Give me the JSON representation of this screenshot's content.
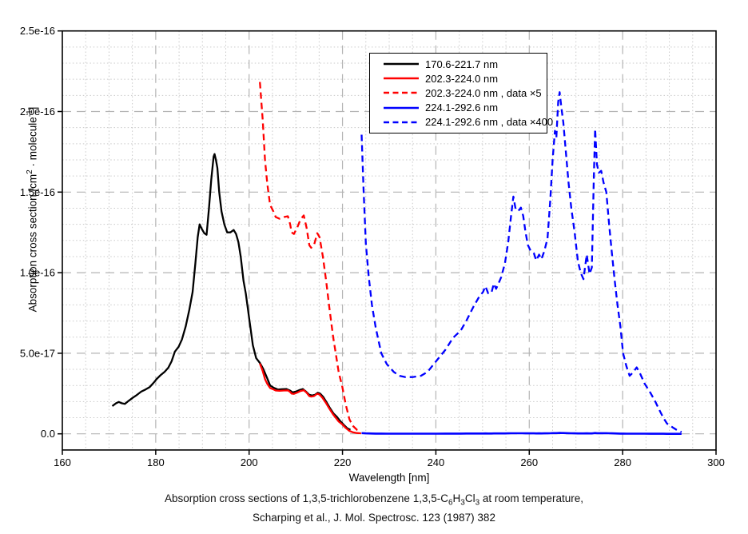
{
  "figure": {
    "x_axis": {
      "label": "Wavelength [nm]",
      "min": 160,
      "max": 300,
      "major_ticks": [
        160,
        180,
        200,
        220,
        240,
        260,
        280,
        300
      ],
      "minor_step_nm": 5
    },
    "y_axis": {
      "label_segments": [
        {
          "t": "Absorption cross section [cm"
        },
        {
          "t": "2",
          "sup": true
        },
        {
          "t": " · molecule"
        },
        {
          "t": "-1",
          "sup": true
        },
        {
          "t": "]"
        }
      ],
      "tick_labels": [
        "0.0",
        "5.0e-17",
        "1.0e-16",
        "1.5e-16",
        "2.0e-16",
        "2.5e-16"
      ],
      "tick_values": [
        0,
        0.5,
        1.0,
        1.5,
        2.0,
        2.5
      ],
      "axis_bottom_value": -0.1,
      "minor_step": 0.1,
      "value_unit": "1e-16 cm^2 molecule^-1"
    },
    "caption_line1_segments": [
      {
        "t": "Absorption cross sections of 1,3,5-trichlorobenzene 1,3,5-C"
      },
      {
        "t": "6",
        "sub": true
      },
      {
        "t": "H"
      },
      {
        "t": "3",
        "sub": true
      },
      {
        "t": "Cl"
      },
      {
        "t": "3",
        "sub": true
      },
      {
        "t": " at room temperature,"
      }
    ],
    "caption_line2": "Scharping et al., J. Mol. Spectrosc. 123 (1987) 382"
  },
  "chart_data": {
    "type": "line",
    "title": "Absorption cross sections of 1,3,5-trichlorobenzene 1,3,5-C6H3Cl3 at room temperature, Scharping et al., J. Mol. Spectrosc. 123 (1987) 382",
    "xlabel": "Wavelength [nm]",
    "ylabel": "Absorption cross section [cm2 · molecule-1]",
    "xlim": [
      160,
      300
    ],
    "ylim_1e16": [
      -0.1,
      2.5
    ],
    "grid": "major dashed + minor dotted",
    "legend_position": "upper center inside frame",
    "y_values_unit": "1e-16 cm^2/molecule",
    "series": [
      {
        "name": "170.6-221.7 nm",
        "color": "#000000",
        "line_style": "solid",
        "scale": 1,
        "points": [
          [
            170.7,
            0.172
          ],
          [
            171.5,
            0.19
          ],
          [
            172.1,
            0.198
          ],
          [
            172.7,
            0.19
          ],
          [
            173.4,
            0.186
          ],
          [
            174.2,
            0.205
          ],
          [
            175.0,
            0.222
          ],
          [
            176.0,
            0.242
          ],
          [
            176.9,
            0.262
          ],
          [
            177.8,
            0.275
          ],
          [
            178.7,
            0.29
          ],
          [
            179.5,
            0.315
          ],
          [
            180.2,
            0.34
          ],
          [
            181.0,
            0.363
          ],
          [
            181.9,
            0.385
          ],
          [
            182.7,
            0.41
          ],
          [
            183.4,
            0.45
          ],
          [
            184.1,
            0.51
          ],
          [
            184.9,
            0.54
          ],
          [
            185.6,
            0.585
          ],
          [
            186.4,
            0.665
          ],
          [
            187.2,
            0.77
          ],
          [
            187.9,
            0.88
          ],
          [
            188.5,
            1.06
          ],
          [
            189.0,
            1.22
          ],
          [
            189.4,
            1.3
          ],
          [
            189.9,
            1.27
          ],
          [
            190.4,
            1.245
          ],
          [
            190.9,
            1.235
          ],
          [
            191.4,
            1.4
          ],
          [
            191.9,
            1.58
          ],
          [
            192.4,
            1.72
          ],
          [
            192.6,
            1.736
          ],
          [
            192.9,
            1.7
          ],
          [
            193.2,
            1.65
          ],
          [
            193.6,
            1.5
          ],
          [
            194.1,
            1.38
          ],
          [
            194.7,
            1.3
          ],
          [
            195.3,
            1.25
          ],
          [
            196.0,
            1.25
          ],
          [
            196.7,
            1.265
          ],
          [
            197.2,
            1.24
          ],
          [
            197.7,
            1.19
          ],
          [
            198.2,
            1.1
          ],
          [
            198.8,
            0.95
          ],
          [
            199.3,
            0.87
          ],
          [
            200.0,
            0.72
          ],
          [
            200.8,
            0.55
          ],
          [
            201.5,
            0.47
          ],
          [
            202.3,
            0.44
          ],
          [
            203.0,
            0.405
          ],
          [
            203.8,
            0.35
          ],
          [
            204.5,
            0.3
          ],
          [
            205.3,
            0.285
          ],
          [
            206.2,
            0.275
          ],
          [
            207.0,
            0.277
          ],
          [
            208.0,
            0.278
          ],
          [
            208.8,
            0.268
          ],
          [
            209.3,
            0.257
          ],
          [
            210.0,
            0.262
          ],
          [
            210.8,
            0.272
          ],
          [
            211.5,
            0.278
          ],
          [
            212.2,
            0.262
          ],
          [
            212.9,
            0.242
          ],
          [
            213.5,
            0.238
          ],
          [
            214.1,
            0.242
          ],
          [
            214.7,
            0.255
          ],
          [
            215.2,
            0.25
          ],
          [
            215.9,
            0.228
          ],
          [
            216.6,
            0.195
          ],
          [
            217.3,
            0.16
          ],
          [
            218.1,
            0.125
          ],
          [
            218.8,
            0.105
          ],
          [
            219.5,
            0.08
          ],
          [
            220.3,
            0.055
          ],
          [
            221.0,
            0.035
          ],
          [
            221.7,
            0.025
          ]
        ]
      },
      {
        "name": "202.3-224.0 nm",
        "color": "#ff0000",
        "line_style": "solid",
        "scale": 1,
        "points": [
          [
            202.3,
            0.4366
          ],
          [
            202.9,
            0.39
          ],
          [
            203.4,
            0.34
          ],
          [
            203.9,
            0.31
          ],
          [
            204.5,
            0.284
          ],
          [
            205.2,
            0.276
          ],
          [
            205.7,
            0.269
          ],
          [
            206.5,
            0.267
          ],
          [
            207.5,
            0.269
          ],
          [
            208.3,
            0.27
          ],
          [
            208.8,
            0.26
          ],
          [
            209.1,
            0.25
          ],
          [
            209.6,
            0.248
          ],
          [
            210.3,
            0.256
          ],
          [
            211.0,
            0.266
          ],
          [
            211.7,
            0.271
          ],
          [
            212.3,
            0.256
          ],
          [
            212.9,
            0.234
          ],
          [
            213.3,
            0.231
          ],
          [
            213.9,
            0.234
          ],
          [
            214.6,
            0.249
          ],
          [
            215.1,
            0.244
          ],
          [
            215.8,
            0.22
          ],
          [
            216.5,
            0.19
          ],
          [
            217.2,
            0.156
          ],
          [
            218.0,
            0.12
          ],
          [
            218.5,
            0.102
          ],
          [
            219.2,
            0.076
          ],
          [
            219.9,
            0.06
          ],
          [
            220.7,
            0.036
          ],
          [
            221.5,
            0.018
          ],
          [
            222.2,
            0.01
          ],
          [
            223.1,
            0.005
          ],
          [
            224.0,
            0.003
          ]
        ]
      },
      {
        "name": "202.3-224.0 nm , data ×5",
        "color": "#ff0000",
        "line_style": "dashed",
        "scale": 5,
        "points_from": "202.3-224.0 nm"
      },
      {
        "name": "224.1-292.6 nm",
        "color": "#0000ff",
        "line_style": "solid",
        "scale": 1,
        "points": [
          [
            224.1,
            0.00464
          ],
          [
            224.5,
            0.0038
          ],
          [
            225.0,
            0.00295
          ],
          [
            225.6,
            0.00245
          ],
          [
            226.3,
            0.002
          ],
          [
            227.1,
            0.00165
          ],
          [
            228.3,
            0.00125
          ],
          [
            229.5,
            0.00108
          ],
          [
            231.0,
            0.00096
          ],
          [
            232.2,
            0.0009
          ],
          [
            233.5,
            0.00088
          ],
          [
            235.0,
            0.00088
          ],
          [
            236.8,
            0.0009
          ],
          [
            238.2,
            0.00096
          ],
          [
            240.3,
            0.00115
          ],
          [
            242.0,
            0.0013
          ],
          [
            243.7,
            0.00149
          ],
          [
            245.3,
            0.0016
          ],
          [
            246.5,
            0.00175
          ],
          [
            248.1,
            0.00198
          ],
          [
            249.3,
            0.00213
          ],
          [
            250.1,
            0.0022
          ],
          [
            250.6,
            0.00229
          ],
          [
            251.2,
            0.00218
          ],
          [
            251.9,
            0.00219
          ],
          [
            252.4,
            0.00233
          ],
          [
            252.9,
            0.00225
          ],
          [
            253.4,
            0.00233
          ],
          [
            254.0,
            0.00243
          ],
          [
            254.8,
            0.00265
          ],
          [
            255.5,
            0.00298
          ],
          [
            256.1,
            0.00338
          ],
          [
            256.6,
            0.00368
          ],
          [
            257.1,
            0.00348
          ],
          [
            257.7,
            0.00346
          ],
          [
            258.2,
            0.00351
          ],
          [
            258.7,
            0.00338
          ],
          [
            259.2,
            0.00313
          ],
          [
            259.7,
            0.00293
          ],
          [
            260.3,
            0.00284
          ],
          [
            261.0,
            0.0028
          ],
          [
            261.5,
            0.00269
          ],
          [
            262.1,
            0.00278
          ],
          [
            262.6,
            0.00271
          ],
          [
            263.2,
            0.00283
          ],
          [
            263.9,
            0.00303
          ],
          [
            264.5,
            0.00363
          ],
          [
            265.0,
            0.00425
          ],
          [
            265.5,
            0.0047
          ],
          [
            265.8,
            0.0046
          ],
          [
            266.2,
            0.00515
          ],
          [
            266.5,
            0.0053
          ],
          [
            266.9,
            0.00505
          ],
          [
            267.3,
            0.00483
          ],
          [
            267.8,
            0.0044
          ],
          [
            268.4,
            0.0039
          ],
          [
            269.0,
            0.0035
          ],
          [
            269.7,
            0.00313
          ],
          [
            270.4,
            0.00268
          ],
          [
            271.0,
            0.0025
          ],
          [
            271.6,
            0.0024
          ],
          [
            272.3,
            0.00278
          ],
          [
            272.9,
            0.00248
          ],
          [
            273.4,
            0.00258
          ],
          [
            273.8,
            0.00388
          ],
          [
            274.1,
            0.00473
          ],
          [
            274.5,
            0.00418
          ],
          [
            274.9,
            0.00405
          ],
          [
            275.4,
            0.00408
          ],
          [
            275.9,
            0.0039
          ],
          [
            276.5,
            0.00375
          ],
          [
            277.1,
            0.00325
          ],
          [
            277.7,
            0.0028
          ],
          [
            278.3,
            0.00238
          ],
          [
            278.9,
            0.002
          ],
          [
            279.5,
            0.00168
          ],
          [
            280.1,
            0.00125
          ],
          [
            280.8,
            0.00105
          ],
          [
            281.5,
            0.0009
          ],
          [
            282.2,
            0.00095
          ],
          [
            283.0,
            0.00103
          ],
          [
            283.7,
            0.00094
          ],
          [
            284.7,
            0.00078
          ],
          [
            286.0,
            0.00063
          ],
          [
            287.0,
            0.0005
          ],
          [
            287.8,
            0.00038
          ],
          [
            288.7,
            0.00025
          ],
          [
            289.5,
            0.00016
          ],
          [
            290.7,
            0.0001
          ],
          [
            291.6,
            6e-05
          ],
          [
            292.6,
            3e-05
          ]
        ]
      },
      {
        "name": "224.1-292.6 nm , data ×400",
        "color": "#0000ff",
        "line_style": "dashed",
        "scale": 400,
        "points_from": "224.1-292.6 nm"
      }
    ]
  }
}
